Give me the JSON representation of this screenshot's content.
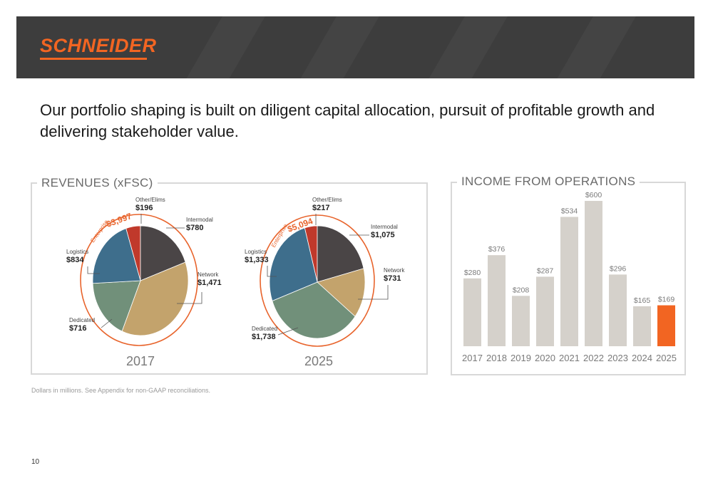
{
  "header": {
    "logo_text": "SCHNEIDER",
    "logo_color": "#f26522",
    "banner_color": "#3d3d3d"
  },
  "headline": "Our portfolio shaping is built on diligent capital allocation, pursuit of profitable growth and delivering stakeholder value.",
  "revenues_title": "REVENUES (xFSC)",
  "income_title": "INCOME FROM OPERATIONS",
  "footnote": "Dollars in millions. See Appendix for non-GAAP reconciliations.",
  "page_number": "10",
  "chart_data": [
    {
      "type": "pie",
      "year": "2017",
      "enterprise_label": "Enterprise",
      "enterprise_total": "$3,997",
      "slices": [
        {
          "name": "Other/Elims",
          "label": "$196",
          "value": 196,
          "color": "#c0392b"
        },
        {
          "name": "Intermodal",
          "label": "$780",
          "value": 780,
          "color": "#4a4546"
        },
        {
          "name": "Network",
          "label": "$1,471",
          "value": 1471,
          "color": "#c3a36c"
        },
        {
          "name": "Dedicated",
          "label": "$716",
          "value": 716,
          "color": "#71907a"
        },
        {
          "name": "Logistics",
          "label": "$834",
          "value": 834,
          "color": "#3e6e8c"
        }
      ]
    },
    {
      "type": "pie",
      "year": "2025",
      "enterprise_label": "Enterprise",
      "enterprise_total": "$5,094",
      "slices": [
        {
          "name": "Other/Elims",
          "label": "$217",
          "value": 217,
          "color": "#c0392b"
        },
        {
          "name": "Intermodal",
          "label": "$1,075",
          "value": 1075,
          "color": "#4a4546"
        },
        {
          "name": "Network",
          "label": "$731",
          "value": 731,
          "color": "#c3a36c"
        },
        {
          "name": "Dedicated",
          "label": "$1,738",
          "value": 1738,
          "color": "#71907a"
        },
        {
          "name": "Logistics",
          "label": "$1,333",
          "value": 1333,
          "color": "#3e6e8c"
        }
      ]
    },
    {
      "type": "bar",
      "categories": [
        "2017",
        "2018",
        "2019",
        "2020",
        "2021",
        "2022",
        "2023",
        "2024",
        "2025"
      ],
      "values": [
        280,
        376,
        208,
        287,
        534,
        600,
        296,
        165,
        169
      ],
      "value_labels": [
        "$280",
        "$376",
        "$208",
        "$287",
        "$534",
        "$600",
        "$296",
        "$165",
        "$169"
      ],
      "bar_color": "#d5d1cb",
      "highlight_color": "#f26522",
      "highlight_index": 8,
      "ylim": [
        0,
        600
      ]
    }
  ]
}
